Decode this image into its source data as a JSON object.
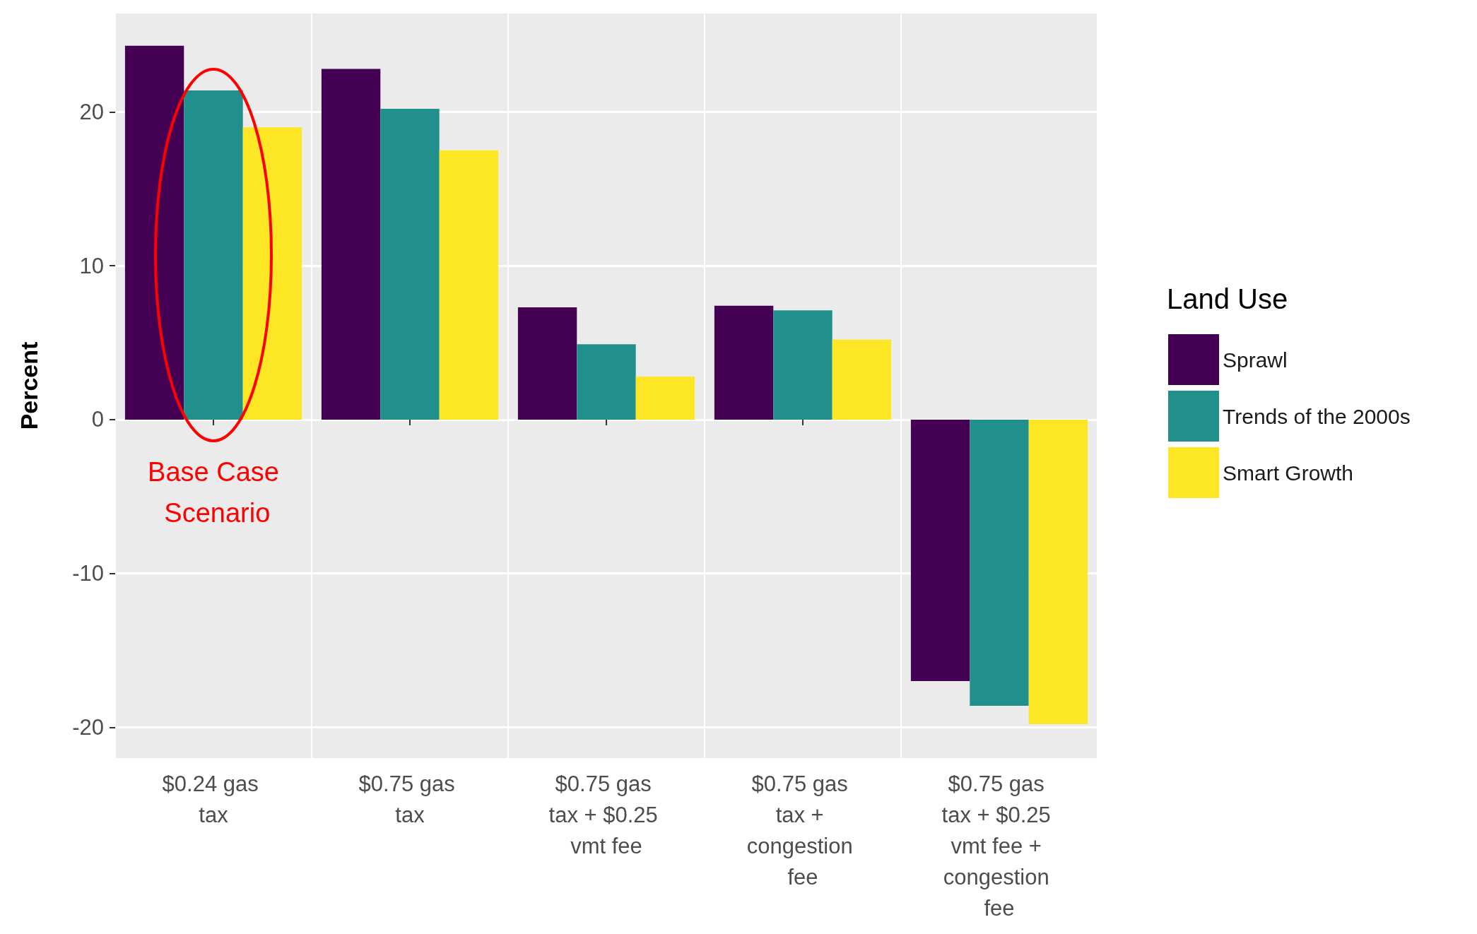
{
  "chart_data": {
    "type": "bar",
    "ylabel": "Percent",
    "legend_title": "Land Use",
    "legend": "right",
    "grid": true,
    "categories": [
      "$0.24 gas tax",
      "$0.75 gas tax",
      "$0.75 gas tax + $0.25 vmt fee",
      "$0.75 gas tax + congestion fee",
      "$0.75 gas tax + $0.25 vmt fee + congestion fee"
    ],
    "series": [
      {
        "name": "Sprawl",
        "color": "#440154",
        "values": [
          24.3,
          22.8,
          7.3,
          7.4,
          -17.0
        ]
      },
      {
        "name": "Trends of the 2000s",
        "color": "#21908c",
        "values": [
          21.4,
          20.2,
          4.9,
          7.1,
          -18.6
        ]
      },
      {
        "name": "Smart Growth",
        "color": "#fde725",
        "values": [
          19.0,
          17.5,
          2.8,
          5.2,
          -19.8
        ]
      }
    ],
    "ylim": [
      -22,
      26.4
    ],
    "yticks": [
      -20,
      -10,
      0,
      10,
      20
    ],
    "annotations": [
      "Base Case Scenario"
    ]
  }
}
